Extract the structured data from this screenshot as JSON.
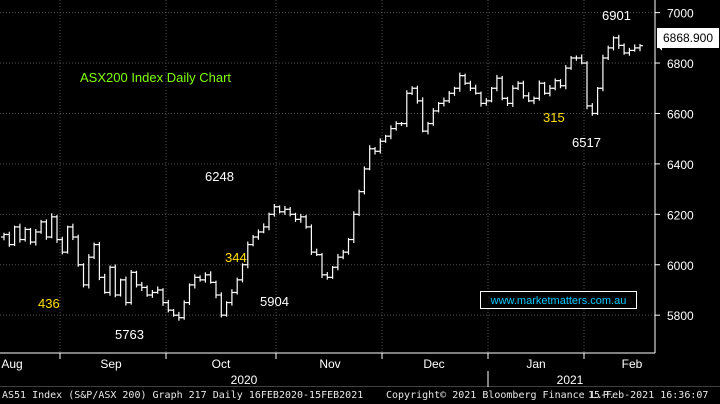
{
  "chart_data": {
    "type": "ohlc",
    "title": "ASX200 Index Daily Chart",
    "ylim": [
      5650,
      7050
    ],
    "yticks": [
      5800,
      6000,
      6200,
      6400,
      6600,
      6800,
      7000
    ],
    "months": [
      "Aug",
      "Sep",
      "Oct",
      "Nov",
      "Dec",
      "Jan",
      "Feb"
    ],
    "years": [
      "2020",
      "2021"
    ],
    "last_price": "6868.900",
    "grid": true,
    "annotations": [
      {
        "text": "6248",
        "color": "#ffffff"
      },
      {
        "text": "344",
        "color": "#ffe000"
      },
      {
        "text": "5904",
        "color": "#ffffff"
      },
      {
        "text": "436",
        "color": "#ffe000"
      },
      {
        "text": "5763",
        "color": "#ffffff"
      },
      {
        "text": "315",
        "color": "#ffe000"
      },
      {
        "text": "6517",
        "color": "#ffffff"
      },
      {
        "text": "6901",
        "color": "#ffffff"
      }
    ],
    "series": [
      {
        "values": [
          6120,
          6080,
          6150,
          6100,
          6140,
          6090,
          6130,
          6170,
          6110,
          6190,
          6100,
          6050,
          6150,
          6110,
          6000,
          5920,
          6030,
          6080,
          5950,
          5890,
          5990,
          5880,
          5940,
          5850,
          5970,
          5920,
          5910,
          5880,
          5890,
          5900,
          5850,
          5820,
          5800,
          5790,
          5850,
          5920,
          5950,
          5940,
          5960,
          5930,
          5880,
          5800,
          5850,
          5890,
          5940,
          6000,
          6080,
          6110,
          6130,
          6150,
          6200,
          6230,
          6210,
          6220,
          6200,
          6180,
          6190,
          6150,
          6050,
          6040,
          5960,
          5950,
          5990,
          6030,
          6050,
          6100,
          6200,
          6290,
          6380,
          6460,
          6450,
          6490,
          6510,
          6540,
          6560,
          6560,
          6680,
          6700,
          6650,
          6530,
          6560,
          6610,
          6640,
          6650,
          6680,
          6700,
          6750,
          6720,
          6700,
          6680,
          6640,
          6650,
          6700,
          6740,
          6660,
          6640,
          6700,
          6720,
          6670,
          6650,
          6660,
          6720,
          6680,
          6700,
          6730,
          6710,
          6780,
          6820,
          6820,
          6800,
          6630,
          6600,
          6700,
          6820,
          6860,
          6900,
          6870,
          6840,
          6850,
          6860,
          6868.9
        ]
      }
    ]
  },
  "watermark": "www.marketmatters.com.au",
  "footer": {
    "left": "AS51 Index (S&P/ASX 200) Graph 217  Daily 16FEB2020-15FEB2021",
    "copyright": "Copyright© 2021 Bloomberg Finance L.P.",
    "timestamp": "15-Feb-2021 16:36:07"
  },
  "colors": {
    "background": "#000000",
    "grid": "#505050",
    "bars": "#ffffff",
    "title": "#7fff00",
    "yellow": "#ffe000",
    "watermark": "#00c8ff"
  }
}
